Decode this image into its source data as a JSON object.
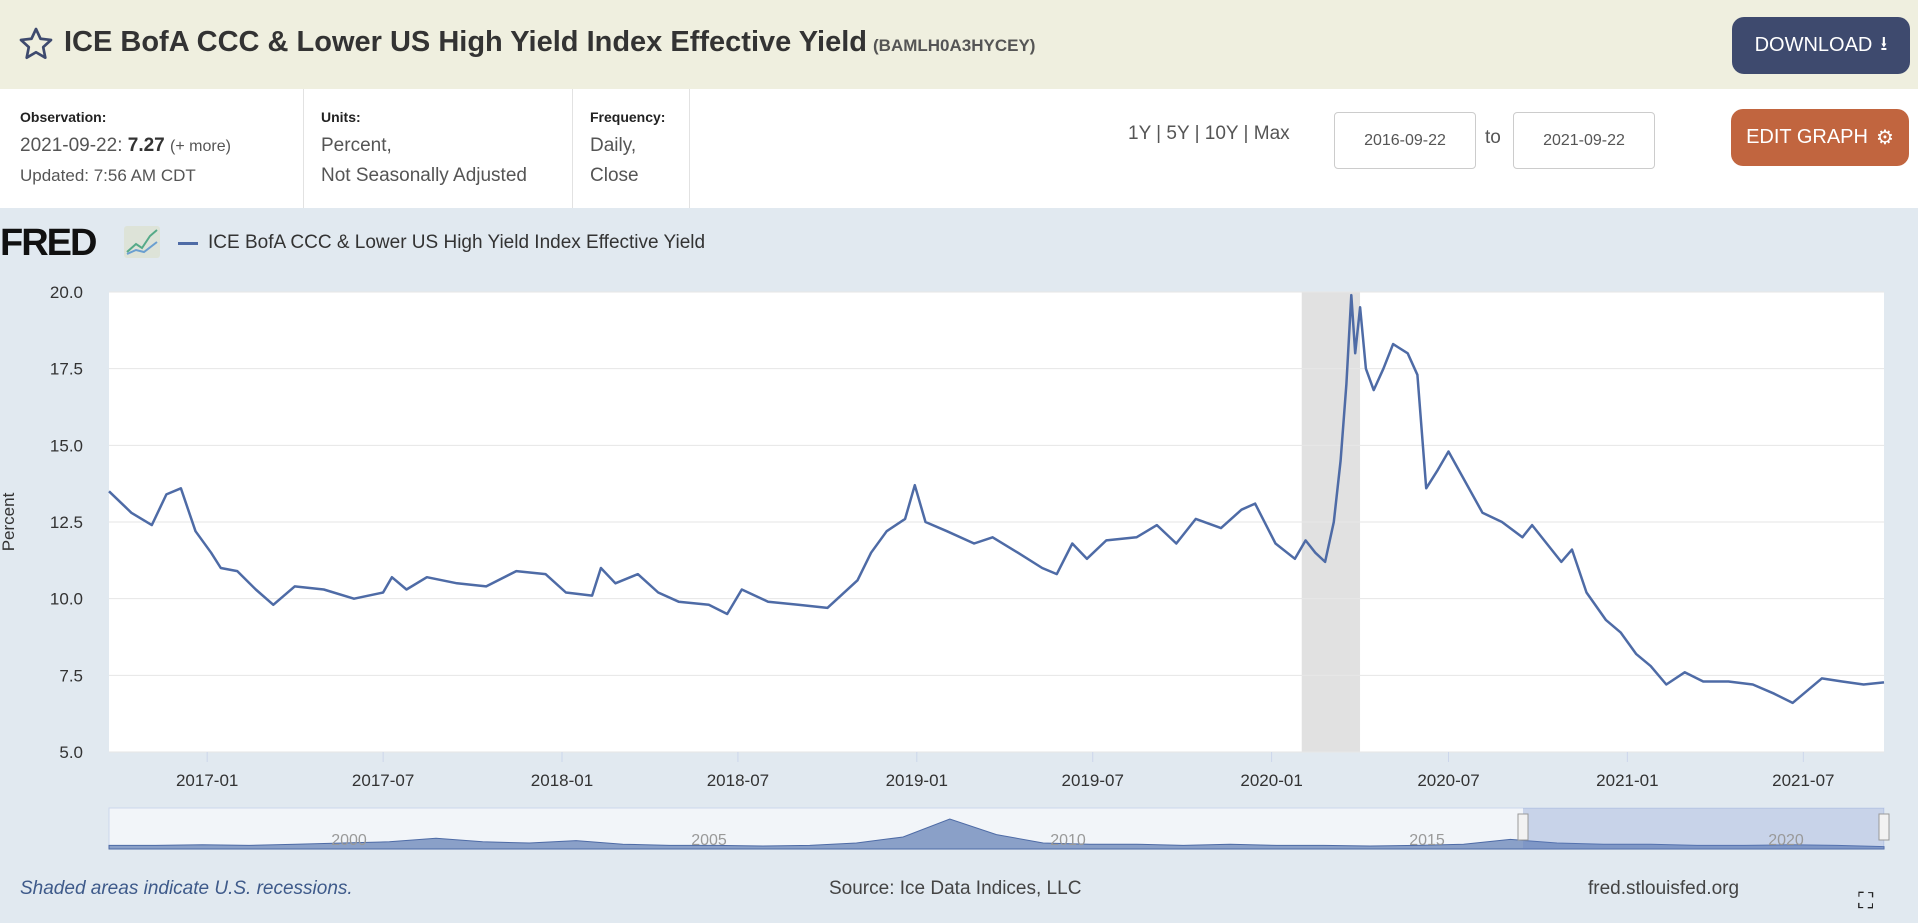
{
  "header": {
    "title": "ICE BofA CCC & Lower US High Yield Index Effective Yield",
    "series_id": "(BAMLH0A3HYCEY)",
    "download_label": "DOWNLOAD",
    "edit_graph_label": "EDIT GRAPH"
  },
  "info": {
    "observation_label": "Observation:",
    "observation_date": "2021-09-22:",
    "observation_value": "7.27",
    "more": "(+ more)",
    "updated": "Updated: 7:56 AM CDT",
    "units_label": "Units:",
    "units_1": "Percent,",
    "units_2": "Not Seasonally Adjusted",
    "frequency_label": "Frequency:",
    "frequency_1": "Daily,",
    "frequency_2": "Close"
  },
  "range": {
    "options": "1Y | 5Y | 10Y | Max",
    "start": "2016-09-22",
    "to": "to",
    "end": "2021-09-22"
  },
  "logo": "FRED",
  "footer": {
    "recession_note": "Shaded areas indicate U.S. recessions.",
    "source": "Source: Ice Data Indices, LLC",
    "site": "fred.stlouisfed.org"
  },
  "colors": {
    "line": "#4e6ba6",
    "download": "#3e4a6e",
    "edit": "#c1653f",
    "header": "#efefdf"
  },
  "chart_data": {
    "type": "line",
    "title": "ICE BofA CCC & Lower US High Yield Index Effective Yield",
    "ylabel": "Percent",
    "xlabel": "",
    "ylim": [
      5,
      20
    ],
    "xlim": [
      "2016-09-22",
      "2021-09-22"
    ],
    "yticks": [
      "5.0",
      "7.5",
      "10.0",
      "12.5",
      "15.0",
      "17.5",
      "20.0"
    ],
    "xticks": [
      "2017-01",
      "2017-07",
      "2018-01",
      "2018-07",
      "2019-01",
      "2019-07",
      "2020-01",
      "2020-07",
      "2021-01",
      "2021-07"
    ],
    "recessions": [
      [
        "2020-02-01",
        "2020-04-01"
      ]
    ],
    "navigator_labels": [
      "2000",
      "2005",
      "2010",
      "2015",
      "2020"
    ],
    "series": [
      {
        "name": "ICE BofA CCC & Lower US High Yield Index Effective Yield",
        "points": [
          [
            "2016-09-22",
            13.5
          ],
          [
            "2016-10-15",
            12.8
          ],
          [
            "2016-11-05",
            12.4
          ],
          [
            "2016-11-20",
            13.4
          ],
          [
            "2016-12-05",
            13.6
          ],
          [
            "2016-12-20",
            12.2
          ],
          [
            "2017-01-05",
            11.5
          ],
          [
            "2017-01-15",
            11.0
          ],
          [
            "2017-02-01",
            10.9
          ],
          [
            "2017-02-20",
            10.3
          ],
          [
            "2017-03-10",
            9.8
          ],
          [
            "2017-04-01",
            10.4
          ],
          [
            "2017-05-01",
            10.3
          ],
          [
            "2017-06-01",
            10.0
          ],
          [
            "2017-07-01",
            10.2
          ],
          [
            "2017-07-10",
            10.7
          ],
          [
            "2017-07-25",
            10.3
          ],
          [
            "2017-08-15",
            10.7
          ],
          [
            "2017-09-15",
            10.5
          ],
          [
            "2017-10-15",
            10.4
          ],
          [
            "2017-11-15",
            10.9
          ],
          [
            "2017-12-15",
            10.8
          ],
          [
            "2018-01-05",
            10.2
          ],
          [
            "2018-02-01",
            10.1
          ],
          [
            "2018-02-10",
            11.0
          ],
          [
            "2018-02-25",
            10.5
          ],
          [
            "2018-03-20",
            10.8
          ],
          [
            "2018-04-10",
            10.2
          ],
          [
            "2018-05-01",
            9.9
          ],
          [
            "2018-06-01",
            9.8
          ],
          [
            "2018-06-20",
            9.5
          ],
          [
            "2018-07-05",
            10.3
          ],
          [
            "2018-08-01",
            9.9
          ],
          [
            "2018-09-01",
            9.8
          ],
          [
            "2018-10-01",
            9.7
          ],
          [
            "2018-11-01",
            10.6
          ],
          [
            "2018-11-15",
            11.5
          ],
          [
            "2018-12-01",
            12.2
          ],
          [
            "2018-12-20",
            12.6
          ],
          [
            "2018-12-30",
            13.7
          ],
          [
            "2019-01-10",
            12.5
          ],
          [
            "2019-02-01",
            12.2
          ],
          [
            "2019-03-01",
            11.8
          ],
          [
            "2019-03-20",
            12.0
          ],
          [
            "2019-04-15",
            11.5
          ],
          [
            "2019-05-10",
            11.0
          ],
          [
            "2019-05-25",
            10.8
          ],
          [
            "2019-06-10",
            11.8
          ],
          [
            "2019-06-25",
            11.3
          ],
          [
            "2019-07-15",
            11.9
          ],
          [
            "2019-08-15",
            12.0
          ],
          [
            "2019-09-05",
            12.4
          ],
          [
            "2019-09-25",
            11.8
          ],
          [
            "2019-10-15",
            12.6
          ],
          [
            "2019-11-10",
            12.3
          ],
          [
            "2019-12-01",
            12.9
          ],
          [
            "2019-12-15",
            13.1
          ],
          [
            "2020-01-05",
            11.8
          ],
          [
            "2020-01-25",
            11.3
          ],
          [
            "2020-02-05",
            11.9
          ],
          [
            "2020-02-15",
            11.5
          ],
          [
            "2020-02-25",
            11.2
          ],
          [
            "2020-03-05",
            12.5
          ],
          [
            "2020-03-12",
            14.5
          ],
          [
            "2020-03-18",
            17.0
          ],
          [
            "2020-03-23",
            19.9
          ],
          [
            "2020-03-27",
            18.0
          ],
          [
            "2020-04-01",
            19.5
          ],
          [
            "2020-04-07",
            17.5
          ],
          [
            "2020-04-15",
            16.8
          ],
          [
            "2020-04-25",
            17.5
          ],
          [
            "2020-05-05",
            18.3
          ],
          [
            "2020-05-20",
            18.0
          ],
          [
            "2020-05-30",
            17.3
          ],
          [
            "2020-06-08",
            13.6
          ],
          [
            "2020-06-20",
            14.2
          ],
          [
            "2020-07-01",
            14.8
          ],
          [
            "2020-07-15",
            14.0
          ],
          [
            "2020-08-05",
            12.8
          ],
          [
            "2020-08-25",
            12.5
          ],
          [
            "2020-09-15",
            12.0
          ],
          [
            "2020-09-25",
            12.4
          ],
          [
            "2020-10-10",
            11.8
          ],
          [
            "2020-10-25",
            11.2
          ],
          [
            "2020-11-05",
            11.6
          ],
          [
            "2020-11-20",
            10.2
          ],
          [
            "2020-12-10",
            9.3
          ],
          [
            "2020-12-25",
            8.9
          ],
          [
            "2021-01-10",
            8.2
          ],
          [
            "2021-01-25",
            7.8
          ],
          [
            "2021-02-10",
            7.2
          ],
          [
            "2021-03-01",
            7.6
          ],
          [
            "2021-03-20",
            7.3
          ],
          [
            "2021-04-15",
            7.3
          ],
          [
            "2021-05-10",
            7.2
          ],
          [
            "2021-06-01",
            6.9
          ],
          [
            "2021-06-20",
            6.6
          ],
          [
            "2021-07-05",
            7.0
          ],
          [
            "2021-07-20",
            7.4
          ],
          [
            "2021-08-10",
            7.3
          ],
          [
            "2021-09-01",
            7.2
          ],
          [
            "2021-09-22",
            7.27
          ]
        ]
      }
    ]
  }
}
